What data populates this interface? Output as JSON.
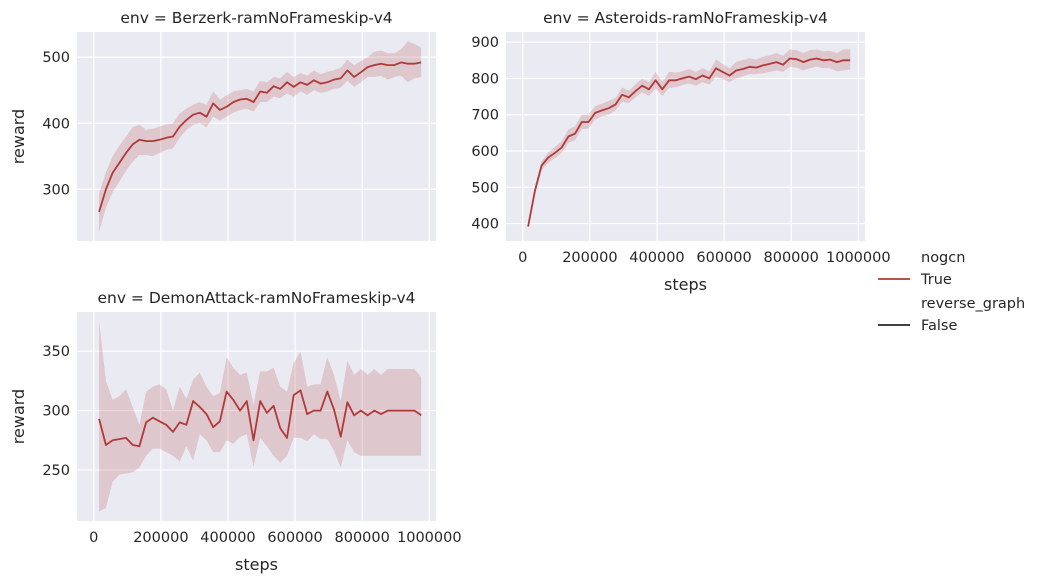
{
  "legend": {
    "groups": [
      {
        "title": "nogcn",
        "entries": [
          {
            "label": "True",
            "color": "#b03a3a"
          }
        ]
      },
      {
        "title": "reverse_graph",
        "entries": [
          {
            "label": "False",
            "color": "#262626"
          }
        ]
      }
    ],
    "placement": "right"
  },
  "chart_data": [
    {
      "type": "line",
      "title": "env = Berzerk-ramNoFrameskip-v4",
      "xlabel": "",
      "ylabel": "reward",
      "xlim": [
        -50000,
        1020000
      ],
      "ylim": [
        222,
        538
      ],
      "xticks": [
        0,
        200000,
        400000,
        600000,
        800000,
        1000000
      ],
      "xtick_labels": [],
      "yticks": [
        300,
        400,
        500
      ],
      "ytick_labels": [
        "300",
        "400",
        "500"
      ],
      "grid": true,
      "series": [
        {
          "name": "nogcn=True",
          "color": "#b03a3a",
          "x": [
            16000,
            36000,
            56000,
            76000,
            96000,
            116000,
            136000,
            156000,
            176000,
            196000,
            216000,
            236000,
            256000,
            276000,
            296000,
            316000,
            336000,
            356000,
            376000,
            396000,
            416000,
            436000,
            456000,
            476000,
            496000,
            516000,
            536000,
            556000,
            576000,
            596000,
            616000,
            636000,
            656000,
            676000,
            696000,
            716000,
            736000,
            756000,
            776000,
            796000,
            816000,
            836000,
            856000,
            876000,
            896000,
            916000,
            936000,
            956000,
            976000
          ],
          "y": [
            266,
            300,
            325,
            340,
            355,
            368,
            375,
            373,
            373,
            375,
            378,
            380,
            395,
            405,
            413,
            416,
            410,
            430,
            420,
            425,
            432,
            436,
            437,
            432,
            448,
            446,
            456,
            452,
            462,
            455,
            462,
            458,
            465,
            460,
            462,
            466,
            468,
            480,
            470,
            477,
            485,
            488,
            490,
            488,
            488,
            492,
            490,
            490,
            492
          ],
          "lower": [
            236,
            272,
            296,
            312,
            328,
            342,
            352,
            352,
            350,
            355,
            360,
            362,
            378,
            390,
            398,
            400,
            394,
            410,
            404,
            410,
            416,
            420,
            422,
            418,
            432,
            432,
            440,
            438,
            445,
            440,
            448,
            443,
            450,
            446,
            448,
            452,
            454,
            464,
            455,
            462,
            470,
            470,
            472,
            466,
            470,
            472,
            462,
            468,
            470
          ],
          "upper": [
            294,
            326,
            350,
            366,
            380,
            394,
            398,
            390,
            392,
            395,
            398,
            400,
            415,
            422,
            428,
            432,
            428,
            448,
            436,
            442,
            448,
            450,
            452,
            448,
            464,
            462,
            470,
            468,
            478,
            470,
            476,
            472,
            480,
            474,
            478,
            480,
            484,
            496,
            488,
            494,
            500,
            508,
            510,
            506,
            506,
            512,
            524,
            520,
            514
          ]
        }
      ]
    },
    {
      "type": "line",
      "title": "env = Asteroids-ramNoFrameskip-v4",
      "xlabel": "steps",
      "ylabel": "",
      "xlim": [
        -50000,
        1020000
      ],
      "ylim": [
        352,
        928
      ],
      "xticks": [
        0,
        200000,
        400000,
        600000,
        800000,
        1000000
      ],
      "xtick_labels": [
        "0",
        "200000",
        "400000",
        "600000",
        "800000",
        "1000000"
      ],
      "yticks": [
        400,
        500,
        600,
        700,
        800,
        900
      ],
      "ytick_labels": [
        "400",
        "500",
        "600",
        "700",
        "800",
        "900"
      ],
      "grid": true,
      "series": [
        {
          "name": "nogcn=True",
          "color": "#b03a3a",
          "x": [
            16000,
            36000,
            56000,
            76000,
            96000,
            116000,
            136000,
            156000,
            176000,
            196000,
            216000,
            236000,
            256000,
            276000,
            296000,
            316000,
            336000,
            356000,
            376000,
            396000,
            416000,
            436000,
            456000,
            476000,
            496000,
            516000,
            536000,
            556000,
            576000,
            596000,
            616000,
            636000,
            656000,
            676000,
            696000,
            716000,
            736000,
            756000,
            776000,
            796000,
            816000,
            836000,
            856000,
            876000,
            896000,
            916000,
            936000,
            956000,
            976000
          ],
          "y": [
            392,
            490,
            560,
            582,
            595,
            610,
            640,
            648,
            680,
            680,
            705,
            712,
            718,
            728,
            755,
            748,
            765,
            780,
            770,
            795,
            770,
            795,
            795,
            800,
            805,
            798,
            808,
            800,
            828,
            818,
            808,
            822,
            826,
            832,
            830,
            836,
            840,
            845,
            838,
            855,
            853,
            845,
            852,
            855,
            850,
            852,
            845,
            850,
            850
          ],
          "lower": [
            385,
            478,
            548,
            568,
            580,
            595,
            622,
            630,
            660,
            662,
            688,
            696,
            700,
            712,
            736,
            732,
            748,
            762,
            752,
            772,
            752,
            774,
            776,
            782,
            786,
            780,
            790,
            783,
            805,
            798,
            790,
            800,
            806,
            812,
            812,
            814,
            818,
            822,
            818,
            832,
            830,
            822,
            828,
            832,
            828,
            828,
            820,
            822,
            825
          ],
          "upper": [
            399,
            502,
            572,
            596,
            612,
            626,
            660,
            668,
            700,
            700,
            724,
            730,
            738,
            746,
            775,
            766,
            784,
            800,
            790,
            818,
            790,
            818,
            816,
            820,
            826,
            818,
            828,
            820,
            852,
            840,
            828,
            846,
            850,
            856,
            852,
            860,
            864,
            870,
            862,
            880,
            878,
            870,
            878,
            880,
            875,
            876,
            870,
            880,
            880
          ]
        }
      ]
    },
    {
      "type": "line",
      "title": "env = DemonAttack-ramNoFrameskip-v4",
      "xlabel": "steps",
      "ylabel": "reward",
      "xlim": [
        -50000,
        1020000
      ],
      "ylim": [
        207,
        383
      ],
      "xticks": [
        0,
        200000,
        400000,
        600000,
        800000,
        1000000
      ],
      "xtick_labels": [
        "0",
        "200000",
        "400000",
        "600000",
        "800000",
        "1000000"
      ],
      "yticks": [
        250,
        300,
        350
      ],
      "ytick_labels": [
        "250",
        "300",
        "350"
      ],
      "grid": true,
      "series": [
        {
          "name": "nogcn=True",
          "color": "#b03a3a",
          "x": [
            16000,
            36000,
            56000,
            76000,
            96000,
            116000,
            136000,
            156000,
            176000,
            196000,
            216000,
            236000,
            256000,
            276000,
            296000,
            316000,
            336000,
            356000,
            376000,
            396000,
            416000,
            436000,
            456000,
            476000,
            496000,
            516000,
            536000,
            556000,
            576000,
            596000,
            616000,
            636000,
            656000,
            676000,
            696000,
            716000,
            736000,
            756000,
            776000,
            796000,
            816000,
            836000,
            856000,
            876000,
            896000,
            916000,
            936000,
            956000,
            976000
          ],
          "y": [
            293,
            271,
            275,
            276,
            277,
            271,
            270,
            290,
            294,
            291,
            288,
            282,
            290,
            288,
            308,
            303,
            297,
            286,
            291,
            316,
            309,
            300,
            308,
            275,
            308,
            298,
            304,
            285,
            277,
            313,
            317,
            297,
            300,
            300,
            316,
            301,
            278,
            307,
            296,
            300,
            296,
            300,
            297,
            300,
            300,
            300,
            300,
            300,
            296
          ],
          "lower": [
            215,
            218,
            240,
            246,
            247,
            248,
            252,
            262,
            268,
            268,
            265,
            262,
            257,
            270,
            258,
            280,
            275,
            265,
            265,
            275,
            272,
            278,
            280,
            253,
            277,
            270,
            262,
            256,
            262,
            277,
            277,
            274,
            280,
            276,
            276,
            266,
            252,
            275,
            265,
            262,
            262,
            262,
            262,
            262,
            262,
            262,
            262,
            262,
            262
          ],
          "upper": [
            375,
            325,
            309,
            312,
            318,
            303,
            288,
            316,
            320,
            322,
            318,
            300,
            320,
            310,
            326,
            332,
            320,
            312,
            315,
            345,
            336,
            330,
            332,
            305,
            333,
            333,
            336,
            320,
            316,
            340,
            350,
            320,
            322,
            322,
            345,
            330,
            308,
            342,
            330,
            335,
            330,
            335,
            330,
            335,
            335,
            335,
            335,
            335,
            328
          ]
        }
      ]
    }
  ]
}
